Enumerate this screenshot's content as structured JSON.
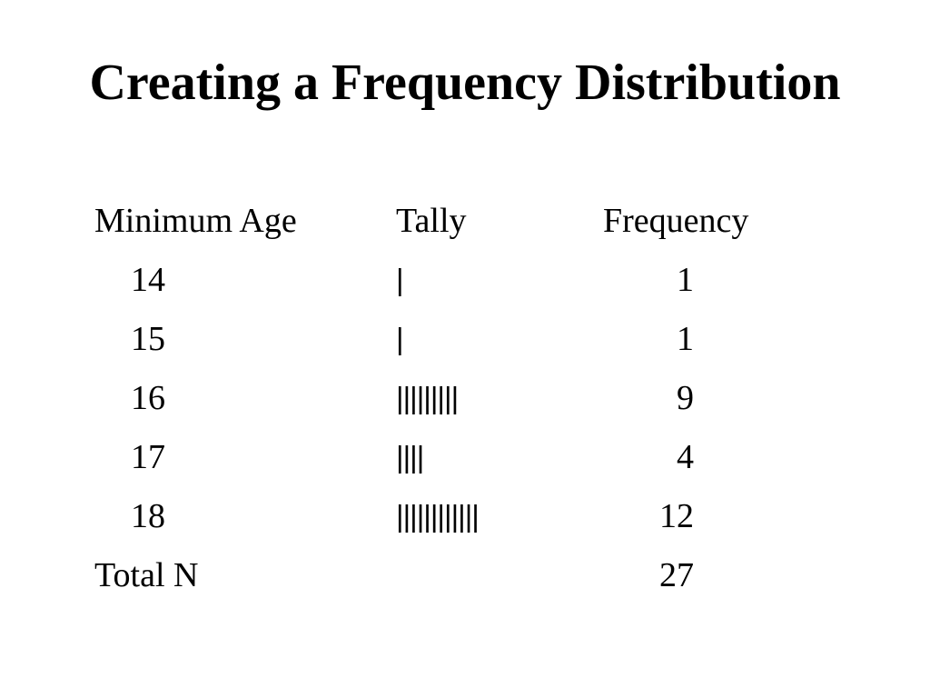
{
  "title": "Creating a Frequency Distribution",
  "table": {
    "headers": {
      "age": "Minimum Age",
      "tally": "Tally",
      "frequency": "Frequency"
    },
    "rows": [
      {
        "age": "14",
        "tally": "|",
        "frequency": "1"
      },
      {
        "age": "15",
        "tally": "|",
        "frequency": "1"
      },
      {
        "age": "16",
        "tally": "|||||||||",
        "frequency": "9"
      },
      {
        "age": "17",
        "tally": "||||",
        "frequency": "4"
      },
      {
        "age": "18",
        "tally": "||||||||||||",
        "frequency": "12"
      }
    ],
    "total": {
      "label": "Total N",
      "frequency": "27"
    }
  }
}
